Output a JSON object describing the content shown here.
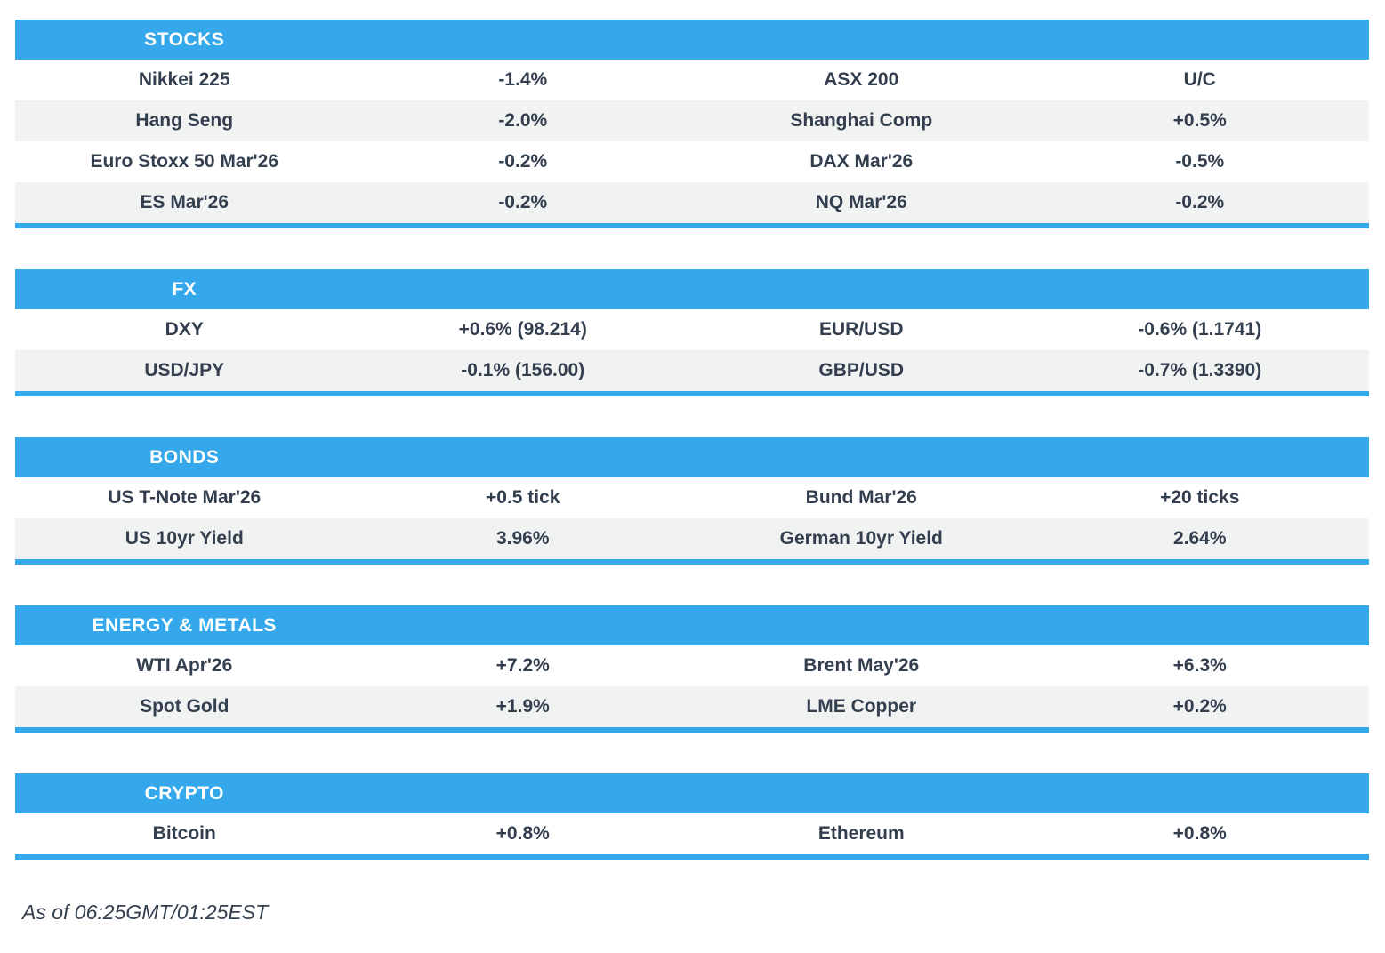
{
  "colors": {
    "accent": "#34A8EB",
    "row_alt": "#F1F2F2",
    "text": "#333F4F",
    "header_text": "#FFFFFF"
  },
  "chart_data": [
    {
      "type": "table",
      "title": "STOCKS",
      "rows": [
        [
          "Nikkei 225",
          "-1.4%",
          "ASX 200",
          "U/C"
        ],
        [
          "Hang Seng",
          "-2.0%",
          "Shanghai Comp",
          "+0.5%"
        ],
        [
          "Euro Stoxx 50 Mar'26",
          "-0.2%",
          "DAX Mar'26",
          "-0.5%"
        ],
        [
          "ES Mar'26",
          "-0.2%",
          "NQ Mar'26",
          "-0.2%"
        ]
      ]
    },
    {
      "type": "table",
      "title": "FX",
      "rows": [
        [
          "DXY",
          "+0.6% (98.214)",
          "EUR/USD",
          "-0.6% (1.1741)"
        ],
        [
          "USD/JPY",
          "-0.1% (156.00)",
          "GBP/USD",
          "-0.7% (1.3390)"
        ]
      ]
    },
    {
      "type": "table",
      "title": "BONDS",
      "rows": [
        [
          "US T-Note Mar'26",
          "+0.5 tick",
          "Bund Mar'26",
          "+20 ticks"
        ],
        [
          "US 10yr Yield",
          "3.96%",
          "German 10yr Yield",
          "2.64%"
        ]
      ]
    },
    {
      "type": "table",
      "title": "ENERGY & METALS",
      "rows": [
        [
          "WTI Apr'26",
          "+7.2%",
          "Brent May'26",
          "+6.3%"
        ],
        [
          "Spot Gold",
          "+1.9%",
          "LME Copper",
          "+0.2%"
        ]
      ]
    },
    {
      "type": "table",
      "title": "CRYPTO",
      "rows": [
        [
          "Bitcoin",
          "+0.8%",
          "Ethereum",
          "+0.8%"
        ]
      ]
    }
  ],
  "footer": {
    "as_of": "As of 06:25GMT/01:25EST"
  }
}
